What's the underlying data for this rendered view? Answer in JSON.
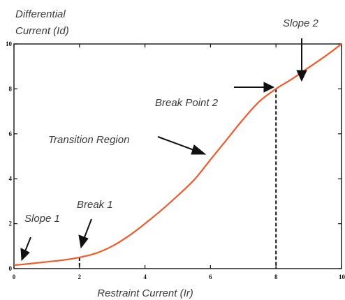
{
  "chart_data": {
    "type": "line",
    "title": "",
    "ylabel_line1": "Differential",
    "ylabel_line2": "Current (Id)",
    "xlabel": "Restraint Current (Ir)",
    "xlim": [
      0,
      10
    ],
    "ylim": [
      0,
      10
    ],
    "x_ticks": [
      "0",
      "2",
      "4",
      "6",
      "8",
      "10"
    ],
    "y_ticks": [
      "0",
      "2",
      "4",
      "6",
      "8",
      "10"
    ],
    "grid": false,
    "line_color": "#f05a28",
    "series": [
      {
        "x": [
          0,
          0.5,
          1,
          1.5,
          2,
          2.5,
          3,
          3.5,
          4,
          4.5,
          5,
          5.5,
          6,
          6.5,
          7,
          7.5,
          8,
          8.5,
          9,
          9.5,
          10
        ],
        "values": [
          0.15,
          0.22,
          0.3,
          0.38,
          0.5,
          0.68,
          1.0,
          1.45,
          2.0,
          2.6,
          3.25,
          3.95,
          4.85,
          5.75,
          6.65,
          7.45,
          8.0,
          8.45,
          8.95,
          9.45,
          10.0
        ]
      }
    ],
    "breakpoint_lines": [
      {
        "x": 2,
        "y": 0.5
      },
      {
        "x": 8,
        "y": 8.0
      }
    ],
    "annotations": [
      {
        "text": "Slope 1",
        "x": 0.1,
        "y": 0.15
      },
      {
        "text": "Break 1",
        "x": 2,
        "y": 0.5
      },
      {
        "text": "Transition Region",
        "x": 5.7,
        "y": 5.0
      },
      {
        "text": "Break Point 2",
        "x": 8,
        "y": 8.0
      },
      {
        "text": "Slope 2",
        "x": 8.8,
        "y": 8.85
      }
    ]
  }
}
